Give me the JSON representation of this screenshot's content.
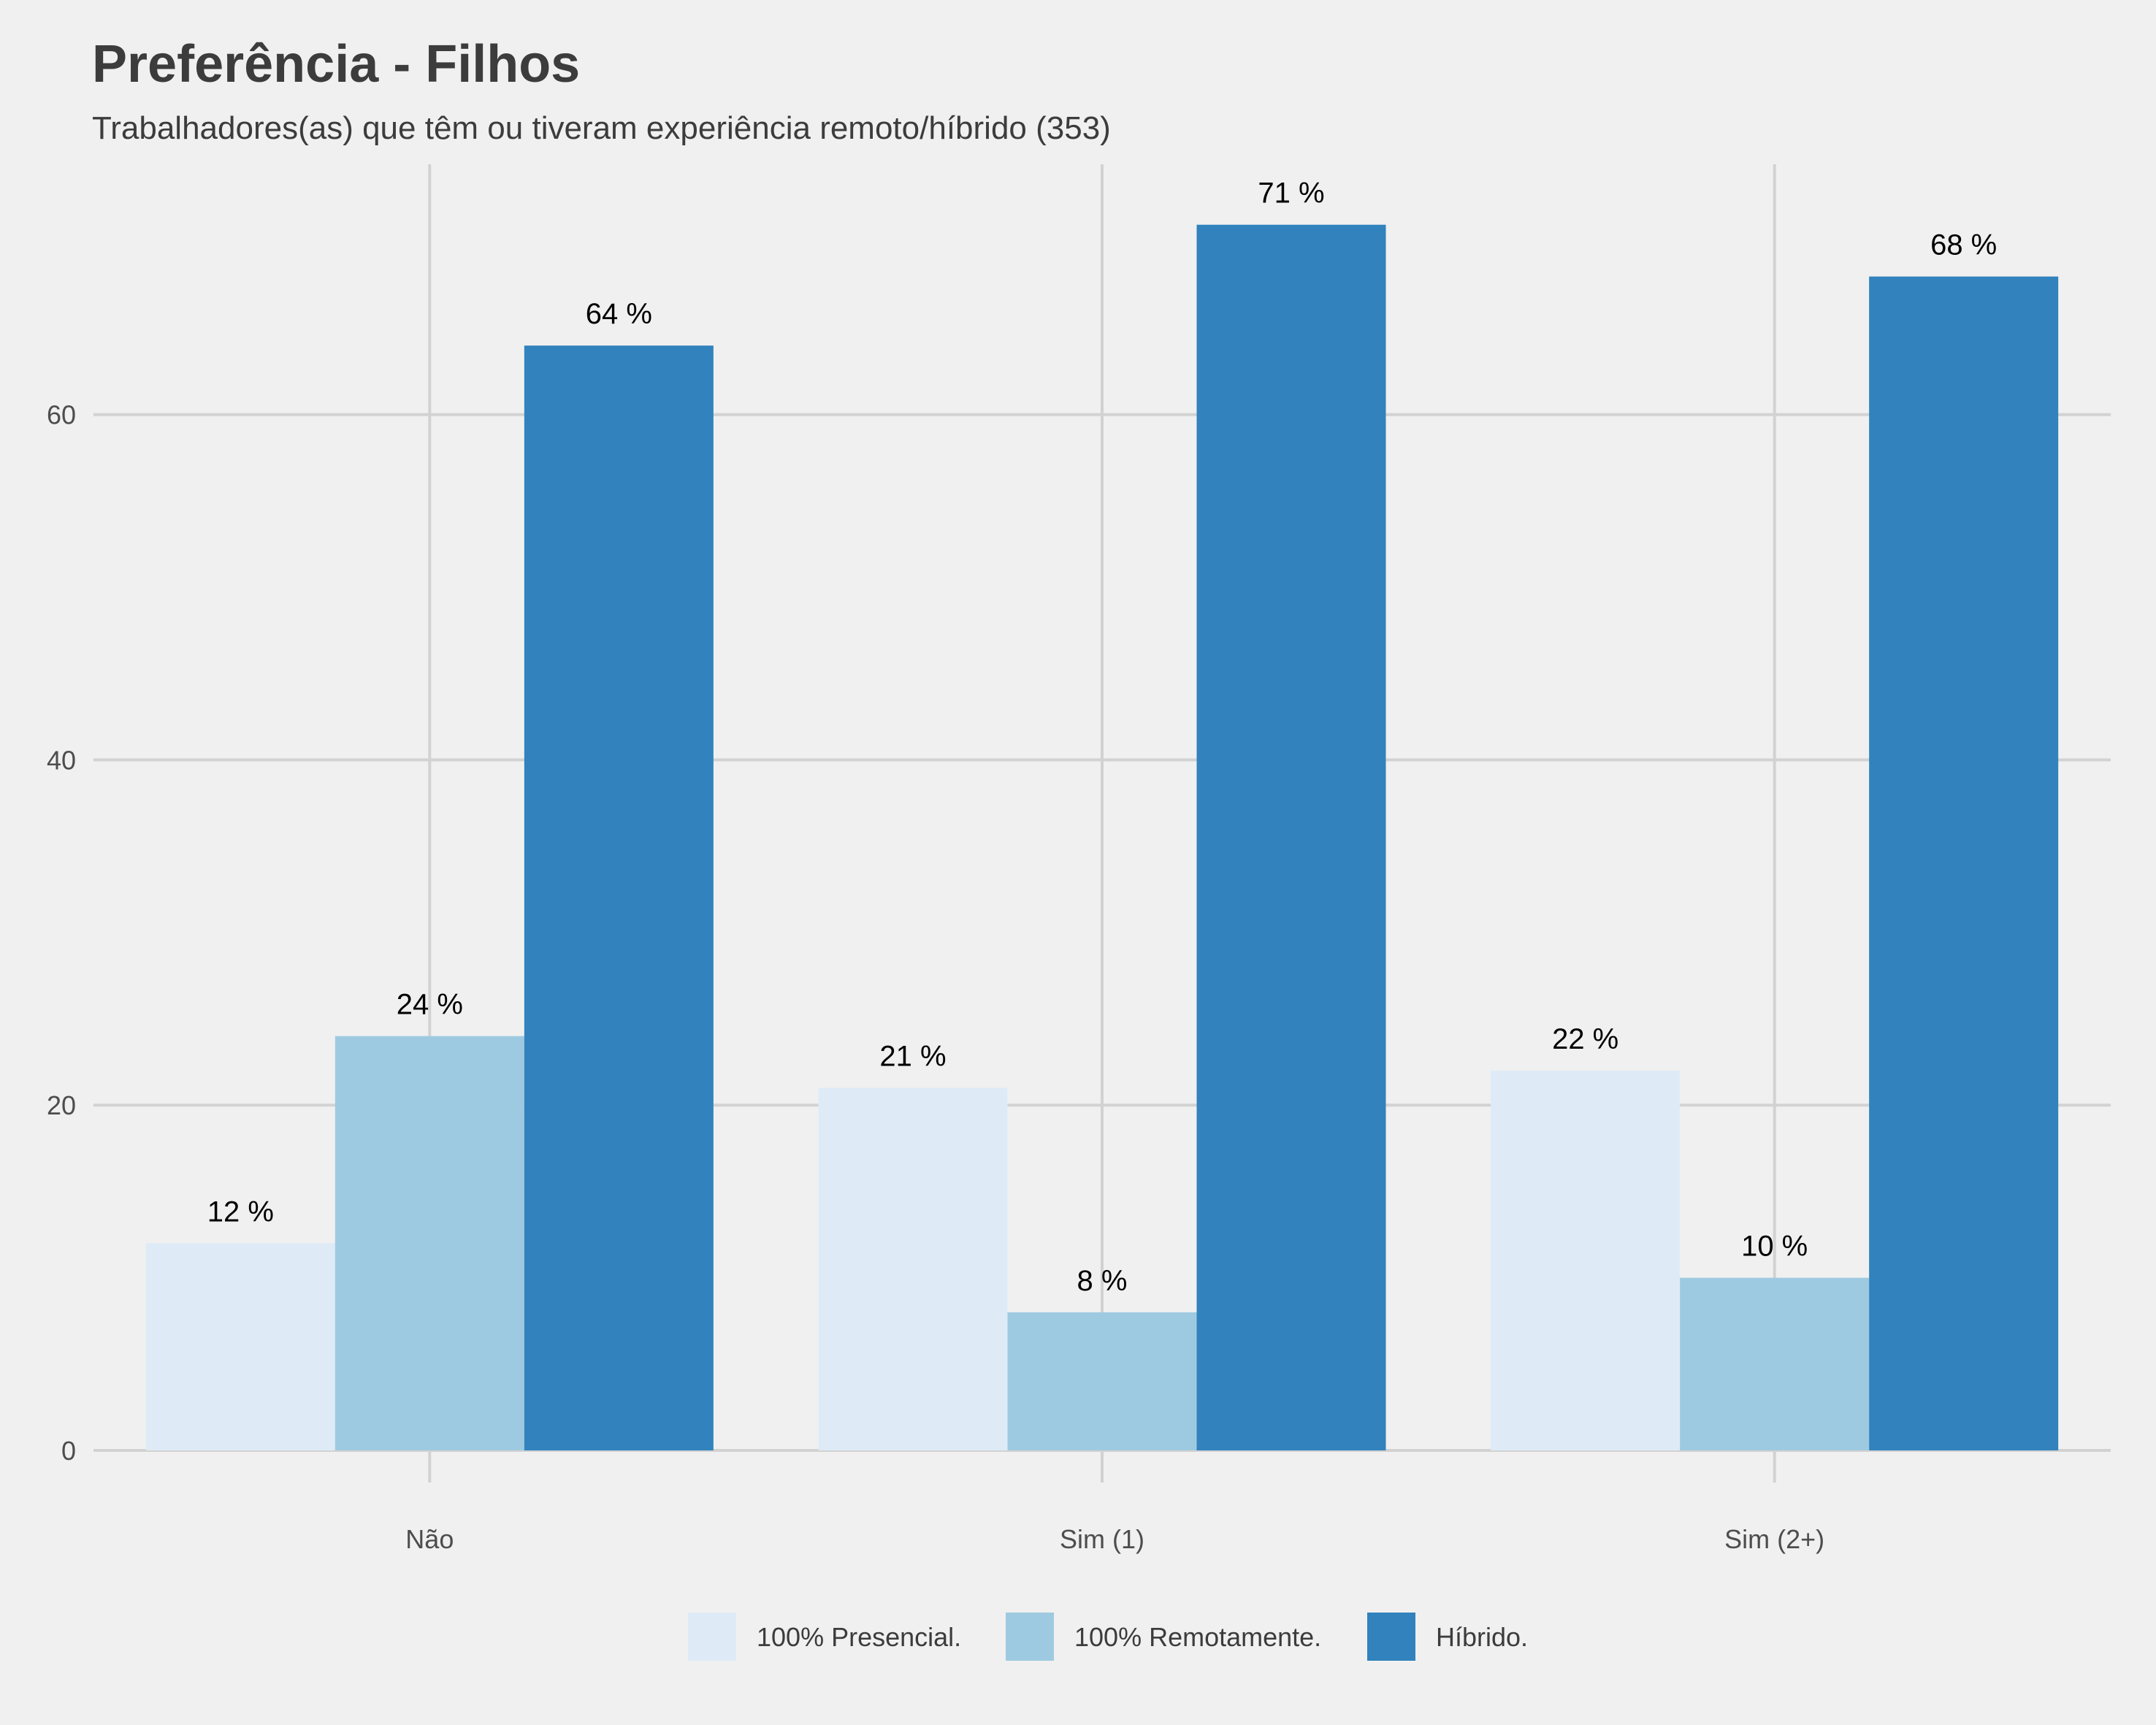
{
  "chart_data": {
    "type": "bar",
    "title": "Preferência - Filhos",
    "subtitle": "Trabalhadores(as) que têm ou tiveram experiência remoto/híbrido (353)",
    "xlabel": "",
    "ylabel": "",
    "categories": [
      "Não",
      "Sim (1)",
      "Sim (2+)"
    ],
    "series": [
      {
        "name": "100% Presencial.",
        "values": [
          12,
          21,
          22
        ],
        "labels": [
          "12 %",
          "21 %",
          "22 %"
        ],
        "color": "#deebf7"
      },
      {
        "name": "100% Remotamente.",
        "values": [
          24,
          8,
          10
        ],
        "labels": [
          "24 %",
          "8 %",
          "10 %"
        ],
        "color": "#9ecae1"
      },
      {
        "name": "Híbrido.",
        "values": [
          64,
          71,
          68
        ],
        "labels": [
          "64 %",
          "71 %",
          "68 %"
        ],
        "color": "#3182bd"
      }
    ],
    "yticks": [
      0,
      20,
      40,
      60
    ],
    "ylim": [
      0,
      74.5
    ],
    "grid": true,
    "legend_position": "bottom",
    "background": "#f0f0f0",
    "grid_color": "#d2d2d2"
  }
}
